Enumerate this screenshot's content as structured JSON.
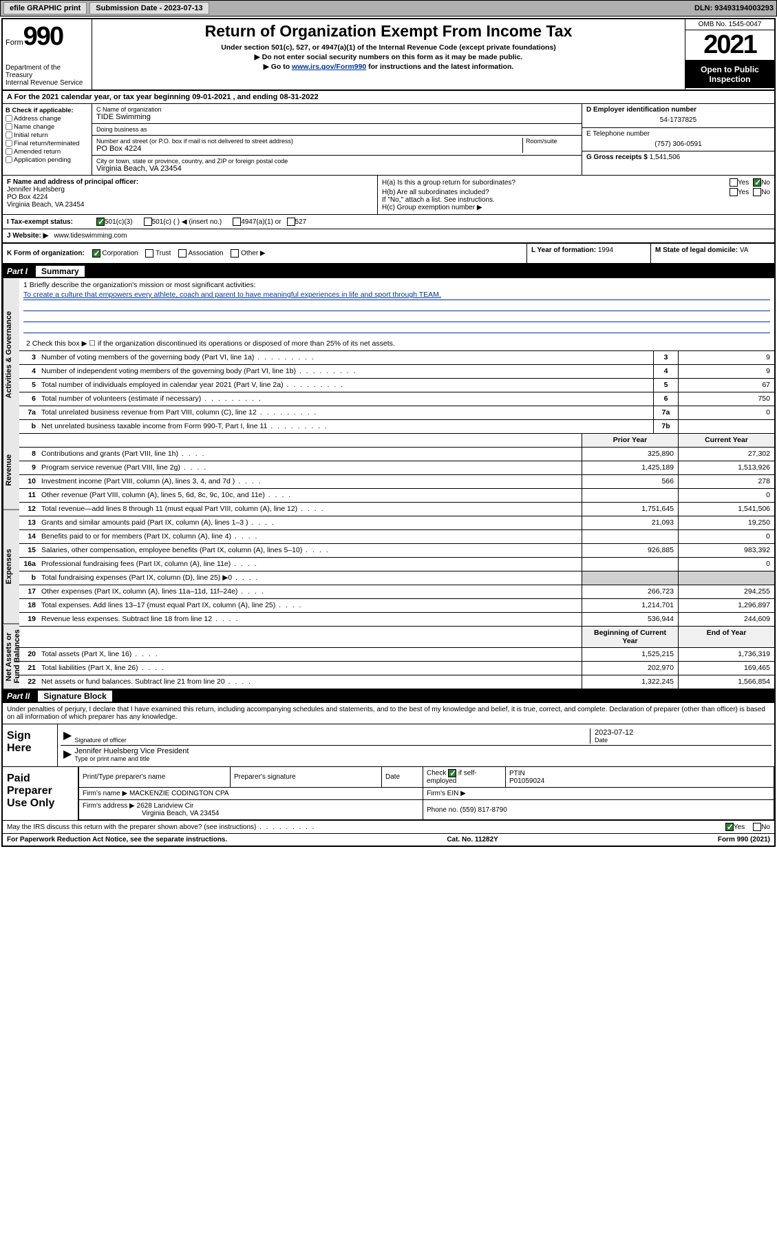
{
  "topbar": {
    "efile": "efile GRAPHIC print",
    "submission_label": "Submission Date - ",
    "submission_date": "2023-07-13",
    "dln_label": "DLN: ",
    "dln": "93493194003293"
  },
  "header": {
    "form_prefix": "Form",
    "form_number": "990",
    "dept": "Department of the Treasury",
    "irs": "Internal Revenue Service",
    "title": "Return of Organization Exempt From Income Tax",
    "subtitle": "Under section 501(c), 527, or 4947(a)(1) of the Internal Revenue Code (except private foundations)",
    "instr1": "▶ Do not enter social security numbers on this form as it may be made public.",
    "instr2_pre": "▶ Go to ",
    "instr2_link": "www.irs.gov/Form990",
    "instr2_post": " for instructions and the latest information.",
    "omb": "OMB No. 1545-0047",
    "year": "2021",
    "open_public": "Open to Public Inspection"
  },
  "row_a": {
    "text": "A For the 2021 calendar year, or tax year beginning 09-01-2021    , and ending 08-31-2022"
  },
  "section_b": {
    "label": "B Check if applicable:",
    "opts": [
      "Address change",
      "Name change",
      "Initial return",
      "Final return/terminated",
      "Amended return",
      "Application pending"
    ]
  },
  "section_c": {
    "name_label": "C Name of organization",
    "name": "TIDE Swimming",
    "dba_label": "Doing business as",
    "dba": "",
    "addr_label": "Number and street (or P.O. box if mail is not delivered to street address)",
    "room_label": "Room/suite",
    "addr": "PO Box 4224",
    "city_label": "City or town, state or province, country, and ZIP or foreign postal code",
    "city": "Virginia Beach, VA  23454"
  },
  "section_d": {
    "ein_label": "D Employer identification number",
    "ein": "54-1737825",
    "phone_label": "E Telephone number",
    "phone": "(757) 306-0591",
    "gross_label": "G Gross receipts $",
    "gross": "1,541,506"
  },
  "section_f": {
    "label": "F  Name and address of principal officer:",
    "name": "Jennifer Huelsberg",
    "addr1": "PO Box 4224",
    "addr2": "Virginia Beach, VA  23454"
  },
  "section_h": {
    "ha_label": "H(a)  Is this a group return for subordinates?",
    "ha_yes": "Yes",
    "ha_no": "No",
    "hb_label": "H(b)  Are all subordinates included?",
    "hb_yes": "Yes",
    "hb_no": "No",
    "hb_note": "If \"No,\" attach a list. See instructions.",
    "hc_label": "H(c)  Group exemption number ▶"
  },
  "row_i": {
    "label": "I   Tax-exempt status:",
    "opt1": "501(c)(3)",
    "opt2": "501(c) (  ) ◀ (insert no.)",
    "opt3": "4947(a)(1) or",
    "opt4": "527"
  },
  "row_j": {
    "label": "J   Website: ▶",
    "value": "www.tideswimming.com"
  },
  "row_k": {
    "label": "K Form of organization:",
    "opt1": "Corporation",
    "opt2": "Trust",
    "opt3": "Association",
    "opt4": "Other ▶",
    "l_label": "L Year of formation: ",
    "l_val": "1994",
    "m_label": "M State of legal domicile: ",
    "m_val": "VA"
  },
  "part1": {
    "num": "Part I",
    "title": "Summary"
  },
  "summary": {
    "tabs": [
      "Activities & Governance",
      "Revenue",
      "Expenses",
      "Net Assets or Fund Balances"
    ],
    "line1_label": "1   Briefly describe the organization's mission or most significant activities:",
    "line1_mission": "To create a culture that empowers every athlete, coach and parent to have meaningful experiences in life and sport through TEAM.",
    "line2": "2   Check this box ▶ ☐  if the organization discontinued its operations or disposed of more than 25% of its net assets.",
    "rows_gov": [
      {
        "n": "3",
        "d": "Number of voting members of the governing body (Part VI, line 1a)",
        "box": "3",
        "v": "9"
      },
      {
        "n": "4",
        "d": "Number of independent voting members of the governing body (Part VI, line 1b)",
        "box": "4",
        "v": "9"
      },
      {
        "n": "5",
        "d": "Total number of individuals employed in calendar year 2021 (Part V, line 2a)",
        "box": "5",
        "v": "67"
      },
      {
        "n": "6",
        "d": "Total number of volunteers (estimate if necessary)",
        "box": "6",
        "v": "750"
      },
      {
        "n": "7a",
        "d": "Total unrelated business revenue from Part VIII, column (C), line 12",
        "box": "7a",
        "v": "0"
      },
      {
        "n": "b",
        "d": "Net unrelated business taxable income from Form 990-T, Part I, line 11",
        "box": "7b",
        "v": ""
      }
    ],
    "col_headers": {
      "prior": "Prior Year",
      "current": "Current Year"
    },
    "rows_rev": [
      {
        "n": "8",
        "d": "Contributions and grants (Part VIII, line 1h)",
        "p": "325,890",
        "c": "27,302"
      },
      {
        "n": "9",
        "d": "Program service revenue (Part VIII, line 2g)",
        "p": "1,425,189",
        "c": "1,513,926"
      },
      {
        "n": "10",
        "d": "Investment income (Part VIII, column (A), lines 3, 4, and 7d )",
        "p": "566",
        "c": "278"
      },
      {
        "n": "11",
        "d": "Other revenue (Part VIII, column (A), lines 5, 6d, 8c, 9c, 10c, and 11e)",
        "p": "",
        "c": "0"
      },
      {
        "n": "12",
        "d": "Total revenue—add lines 8 through 11 (must equal Part VIII, column (A), line 12)",
        "p": "1,751,645",
        "c": "1,541,506"
      }
    ],
    "rows_exp": [
      {
        "n": "13",
        "d": "Grants and similar amounts paid (Part IX, column (A), lines 1–3 )",
        "p": "21,093",
        "c": "19,250"
      },
      {
        "n": "14",
        "d": "Benefits paid to or for members (Part IX, column (A), line 4)",
        "p": "",
        "c": "0"
      },
      {
        "n": "15",
        "d": "Salaries, other compensation, employee benefits (Part IX, column (A), lines 5–10)",
        "p": "926,885",
        "c": "983,392"
      },
      {
        "n": "16a",
        "d": "Professional fundraising fees (Part IX, column (A), line 11e)",
        "p": "",
        "c": "0"
      },
      {
        "n": "b",
        "d": "Total fundraising expenses (Part IX, column (D), line 25) ▶0",
        "p": "",
        "c": "",
        "shade": true
      },
      {
        "n": "17",
        "d": "Other expenses (Part IX, column (A), lines 11a–11d, 11f–24e)",
        "p": "266,723",
        "c": "294,255"
      },
      {
        "n": "18",
        "d": "Total expenses. Add lines 13–17 (must equal Part IX, column (A), line 25)",
        "p": "1,214,701",
        "c": "1,296,897"
      },
      {
        "n": "19",
        "d": "Revenue less expenses. Subtract line 18 from line 12",
        "p": "536,944",
        "c": "244,609"
      }
    ],
    "col_headers2": {
      "begin": "Beginning of Current Year",
      "end": "End of Year"
    },
    "rows_net": [
      {
        "n": "20",
        "d": "Total assets (Part X, line 16)",
        "p": "1,525,215",
        "c": "1,736,319"
      },
      {
        "n": "21",
        "d": "Total liabilities (Part X, line 26)",
        "p": "202,970",
        "c": "169,465"
      },
      {
        "n": "22",
        "d": "Net assets or fund balances. Subtract line 21 from line 20",
        "p": "1,322,245",
        "c": "1,566,854"
      }
    ]
  },
  "part2": {
    "num": "Part II",
    "title": "Signature Block"
  },
  "sig": {
    "decl": "Under penalties of perjury, I declare that I have examined this return, including accompanying schedules and statements, and to the best of my knowledge and belief, it is true, correct, and complete. Declaration of preparer (other than officer) is based on all information of which preparer has any knowledge.",
    "sign_here": "Sign Here",
    "sig_officer": "Signature of officer",
    "date_label": "Date",
    "date_val": "2023-07-12",
    "name_title": "Jennifer Huelsberg  Vice President",
    "name_title_label": "Type or print name and title"
  },
  "prep": {
    "label": "Paid Preparer Use Only",
    "h1": "Print/Type preparer's name",
    "h2": "Preparer's signature",
    "h3": "Date",
    "h4_pre": "Check",
    "h4_post": "if self-employed",
    "h5": "PTIN",
    "ptin": "P01059024",
    "firm_name_label": "Firm's name      ▶",
    "firm_name": "MACKENZIE CODINGTON CPA",
    "firm_ein_label": "Firm's EIN ▶",
    "firm_addr_label": "Firm's address ▶",
    "firm_addr1": "2628 Landview Cir",
    "firm_addr2": "Virginia Beach, VA  23454",
    "phone_label": "Phone no.",
    "phone": "(559) 817-8790"
  },
  "footer": {
    "discuss": "May the IRS discuss this return with the preparer shown above? (see instructions)",
    "yes": "Yes",
    "no": "No",
    "paperwork": "For Paperwork Reduction Act Notice, see the separate instructions.",
    "cat": "Cat. No. 11282Y",
    "form": "Form 990 (2021)"
  }
}
